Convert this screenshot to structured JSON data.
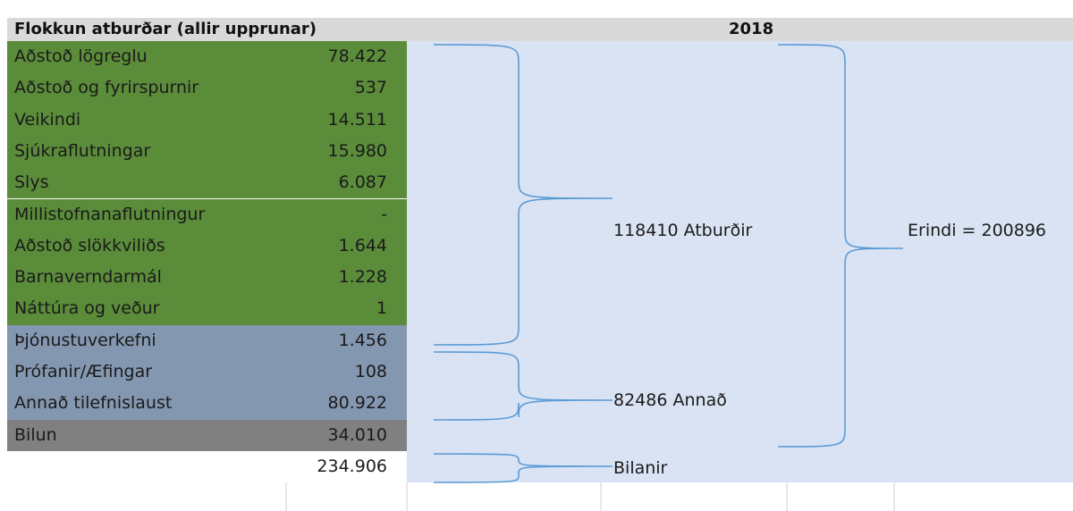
{
  "header": {
    "title": "Flokkun atburðar (allir upprunar)",
    "year": "2018"
  },
  "groups": [
    {
      "rows": [
        {
          "label": "Aðstoð lögreglu",
          "value": "78.422"
        },
        {
          "label": "Aðstoð og fyrirspurnir",
          "value": "537"
        },
        {
          "label": "Veikindi",
          "value": "14.511"
        },
        {
          "label": "Sjúkraflutningar",
          "value": "15.980"
        },
        {
          "label": "Slys",
          "value": "6.087"
        },
        {
          "label": "Millistofnanaflutningur",
          "value": "-"
        },
        {
          "label": "Aðstoð slökkviliðs",
          "value": "1.644"
        },
        {
          "label": "Barnaverndarmál",
          "value": "1.228"
        },
        {
          "label": "Náttúra og veður",
          "value": "1"
        }
      ]
    },
    {
      "rows": [
        {
          "label": "Þjónustuverkefni",
          "value": "1.456"
        },
        {
          "label": "Prófanir/Æfingar",
          "value": "108"
        },
        {
          "label": "Annað tilefnislaust",
          "value": "80.922"
        }
      ]
    },
    {
      "rows": [
        {
          "label": "Bilun",
          "value": "34.010"
        }
      ]
    }
  ],
  "total": "234.906",
  "annotations": {
    "events": "118410 Atburðir",
    "other": "82486 Annað",
    "faults": "Bilanir",
    "errands": "Erindi = 200896"
  }
}
